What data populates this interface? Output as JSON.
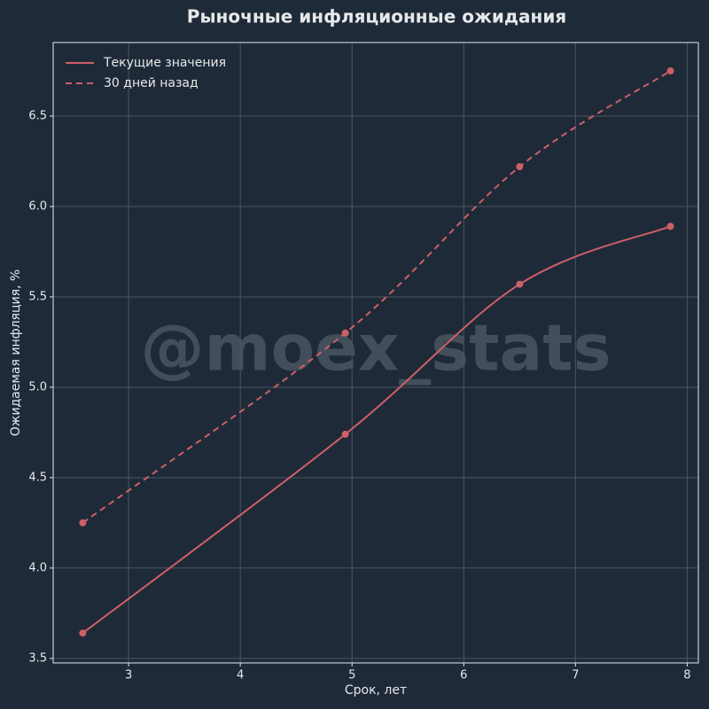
{
  "chart_data": {
    "type": "line",
    "title": "Рыночные инфляционные ожидания",
    "x_label": "Срок, лет",
    "y_label": "Ожидаемая инфляция, %",
    "watermark": "@moex_stats",
    "x": [
      2.59,
      4.94,
      6.5,
      7.85
    ],
    "series": [
      {
        "name": "Текущие значения",
        "color": "#cd5f67",
        "dash": false,
        "values": [
          3.64,
          4.74,
          5.57,
          5.89
        ]
      },
      {
        "name": "30 дней назад",
        "color": "#cd5f67",
        "dash": true,
        "values": [
          4.25,
          5.3,
          6.22,
          6.75
        ]
      }
    ],
    "xlim": [
      2.325,
      8.1
    ],
    "xticks": [
      3,
      4,
      5,
      6,
      7,
      8
    ],
    "ylim": [
      3.475,
      6.907
    ],
    "yticks": [
      {
        "value": 3.5,
        "label": "3.5"
      },
      {
        "value": 4,
        "label": "4.0"
      },
      {
        "value": 4.5,
        "label": "4.5"
      },
      {
        "value": 5,
        "label": "5.0"
      },
      {
        "value": 5.5,
        "label": "5.5"
      },
      {
        "value": 6,
        "label": "6.0"
      },
      {
        "value": 6.5,
        "label": "6.5"
      }
    ],
    "grid": true,
    "legend": "upper-left"
  }
}
